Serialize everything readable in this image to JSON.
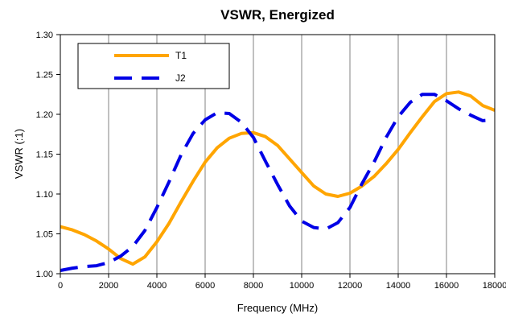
{
  "chart_data": {
    "type": "line",
    "title": "VSWR, Energized",
    "xlabel": "Frequency (MHz)",
    "ylabel": "VSWR (:1)",
    "xlim": [
      0,
      18000
    ],
    "ylim": [
      1.0,
      1.3
    ],
    "xticks": [
      0,
      2000,
      4000,
      6000,
      8000,
      10000,
      12000,
      14000,
      16000,
      18000
    ],
    "yticks": [
      1.0,
      1.05,
      1.1,
      1.15,
      1.2,
      1.25,
      1.3
    ],
    "xtick_labels": [
      "0",
      "2000",
      "4000",
      "6000",
      "8000",
      "10000",
      "12000",
      "14000",
      "16000",
      "18000"
    ],
    "ytick_labels": [
      "1.00",
      "1.05",
      "1.10",
      "1.15",
      "1.20",
      "1.25",
      "1.30"
    ],
    "grid": "vertical",
    "legend_position": "top-left",
    "series": [
      {
        "name": "T1",
        "color": "#FFA500",
        "style": "solid",
        "x": [
          0,
          500,
          1000,
          1500,
          2000,
          2500,
          3000,
          3500,
          4000,
          4500,
          5000,
          5500,
          6000,
          6500,
          7000,
          7500,
          8000,
          8500,
          9000,
          9500,
          10000,
          10500,
          11000,
          11500,
          12000,
          12500,
          13000,
          13500,
          14000,
          14500,
          15000,
          15500,
          16000,
          16500,
          17000,
          17500,
          18000
        ],
        "y": [
          1.059,
          1.055,
          1.049,
          1.041,
          1.031,
          1.019,
          1.012,
          1.021,
          1.04,
          1.063,
          1.09,
          1.116,
          1.14,
          1.158,
          1.17,
          1.176,
          1.177,
          1.172,
          1.161,
          1.144,
          1.127,
          1.11,
          1.1,
          1.097,
          1.101,
          1.11,
          1.122,
          1.138,
          1.156,
          1.177,
          1.197,
          1.216,
          1.226,
          1.228,
          1.223,
          1.211,
          1.205
        ]
      },
      {
        "name": "J2",
        "color": "#0000E6",
        "style": "dashed",
        "x": [
          0,
          500,
          1000,
          1500,
          2000,
          2500,
          3000,
          3500,
          4000,
          4500,
          5000,
          5500,
          6000,
          6500,
          7000,
          7500,
          8000,
          8500,
          9000,
          9500,
          10000,
          10500,
          11000,
          11500,
          12000,
          12500,
          13000,
          13500,
          14000,
          14500,
          15000,
          15500,
          16000,
          16500,
          17000,
          17500,
          18000
        ],
        "y": [
          1.004,
          1.007,
          1.009,
          1.01,
          1.014,
          1.022,
          1.034,
          1.054,
          1.083,
          1.115,
          1.149,
          1.176,
          1.193,
          1.202,
          1.201,
          1.19,
          1.171,
          1.141,
          1.112,
          1.085,
          1.066,
          1.058,
          1.056,
          1.064,
          1.083,
          1.113,
          1.14,
          1.171,
          1.197,
          1.215,
          1.225,
          1.225,
          1.217,
          1.207,
          1.199,
          1.192,
          1.193
        ]
      }
    ]
  }
}
